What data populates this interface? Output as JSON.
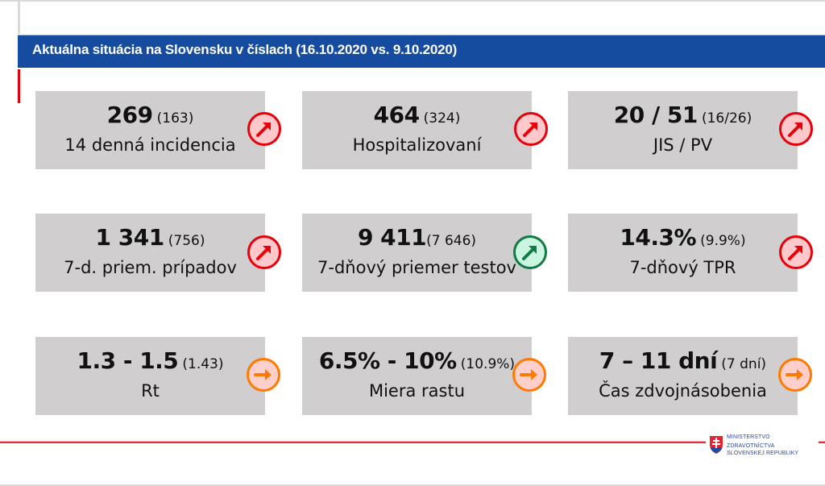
{
  "banner": {
    "title": "Aktuálna situácia na Slovensku v číslach (16.10.2020 vs. 9.10.2020)"
  },
  "colors": {
    "banner": "#154c9f",
    "card": "#d0cecf",
    "up_red": "#e8000b",
    "up_red_fill": "#ffc9cc",
    "up_green": "#117a45",
    "up_green_fill": "#c9f5e1",
    "flat_orange": "#ff7a00",
    "flat_orange_fill": "#ffcfcc"
  },
  "cards": [
    {
      "value": "269",
      "prev": "(163)",
      "label": "14 denná incidencia",
      "trend": "up-right-arrow-icon",
      "trend_color": "red"
    },
    {
      "value": "464",
      "prev": "(324)",
      "label": "Hospitalizovaní",
      "trend": "up-right-arrow-icon",
      "trend_color": "red"
    },
    {
      "value": "20 / 51",
      "prev": "(16/26)",
      "label": "JIS / PV",
      "trend": "up-right-arrow-icon",
      "trend_color": "red"
    },
    {
      "value": "1 341",
      "prev": "(756)",
      "label": "7-d. priem. prípadov",
      "trend": "up-right-arrow-icon",
      "trend_color": "red"
    },
    {
      "value": "9 411",
      "prev": "(7 646)",
      "label": "7-dňový priemer testov",
      "trend": "up-right-arrow-icon",
      "trend_color": "green"
    },
    {
      "value": "14.3%",
      "prev": "(9.9%)",
      "label": "7-dňový TPR",
      "trend": "up-right-arrow-icon",
      "trend_color": "red"
    },
    {
      "value": "1.3 - 1.5",
      "prev": "(1.43)",
      "label": "Rt",
      "trend": "right-arrow-icon",
      "trend_color": "orange"
    },
    {
      "value": "6.5% - 10%",
      "prev": "(10.9%)",
      "label": "Miera rastu",
      "trend": "right-arrow-icon",
      "trend_color": "orange"
    },
    {
      "value": "7 – 11 dní",
      "prev": "(7 dní)",
      "label": "Čas zdvojnásobenia",
      "trend": "right-arrow-icon",
      "trend_color": "orange"
    }
  ],
  "logo": {
    "line1": "MINISTERSTVO",
    "line2": "ZDRAVOTNÍCTVA",
    "line3": "SLOVENSKEJ REPUBLIKY"
  }
}
